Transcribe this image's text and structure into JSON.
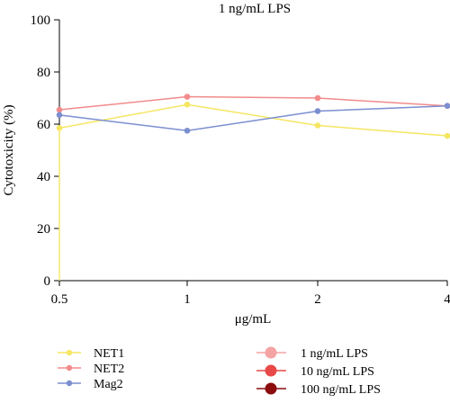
{
  "chart_data": {
    "type": "line",
    "title": "1 ng/mL LPS",
    "xlabel": "μg/mL",
    "ylabel": "Cytotoxicity (%)",
    "categories": [
      "0.5",
      "1",
      "2",
      "4"
    ],
    "ylim": [
      0,
      100
    ],
    "yticks": [
      "0",
      "20",
      "40",
      "60",
      "80",
      "100"
    ],
    "grid": false,
    "legend_position": "bottom",
    "series": [
      {
        "name": "NET1",
        "values": [
          58.5,
          67.5,
          59.5,
          55.5
        ],
        "color": "#f5e663"
      },
      {
        "name": "NET2",
        "values": [
          65.5,
          70.5,
          70.0,
          67.0
        ],
        "color": "#f28b8b"
      },
      {
        "name": "Mag2",
        "values": [
          63.5,
          57.5,
          65.0,
          67.0
        ],
        "color": "#7b8fd0"
      }
    ],
    "baseline_segment": {
      "series": "NET1",
      "from": 58.5,
      "to": 0
    },
    "legend_extra": [
      {
        "name": "1 ng/mL LPS",
        "color": "#f5a3a3"
      },
      {
        "name": "10 ng/mL LPS",
        "color": "#e84848"
      },
      {
        "name": "100 ng/mL LPS",
        "color": "#8b0d0d"
      }
    ]
  }
}
